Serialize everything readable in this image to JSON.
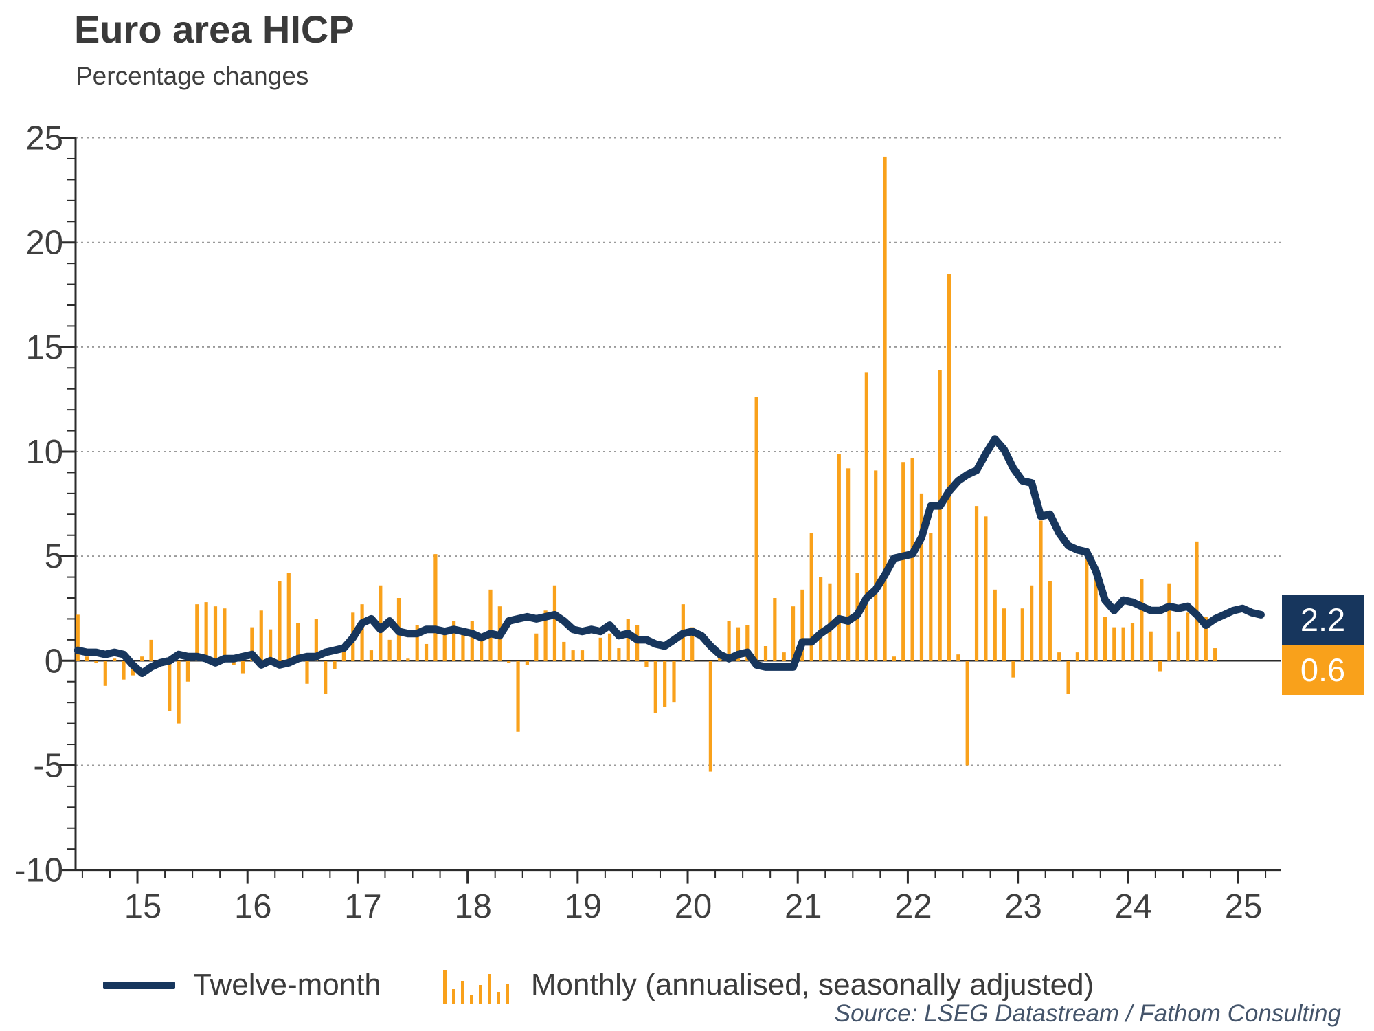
{
  "header": {
    "title": "Euro area HICP",
    "subtitle": "Percentage changes"
  },
  "legend": {
    "twelve_month_label": "Twelve-month",
    "monthly_label": "Monthly (annualised, seasonally adjusted)"
  },
  "source_text": "Source: LSEG Datastream / Fathom Consulting",
  "end_labels": {
    "line_value": "2.2",
    "bar_value": "0.6"
  },
  "colors": {
    "line": "#17365d",
    "bar": "#f9a11b",
    "grid": "#9a9a9a",
    "axis": "#2b2b2b",
    "tick_text": "#3f3f3f"
  },
  "chart_data": {
    "type": "bar+line",
    "title": "Euro area HICP",
    "ylabel": "Percentage changes",
    "ylim": [
      -10,
      25
    ],
    "ytick_step": 5,
    "ytick_labels": [
      "25",
      "20",
      "15",
      "10",
      "5",
      "0",
      "-5",
      "-10"
    ],
    "x_year_labels": [
      "15",
      "16",
      "17",
      "18",
      "19",
      "20",
      "21",
      "22",
      "23",
      "24",
      "25"
    ],
    "grid": "horizontal dotted gridlines at every 5 units except 0; solid zero line",
    "legend_position": "bottom",
    "start_month": "2014-06",
    "frequency": "monthly",
    "series": [
      {
        "name": "Twelve-month",
        "type": "line",
        "end_month": "2025-03",
        "values": [
          0.5,
          0.4,
          0.4,
          0.3,
          0.4,
          0.3,
          -0.2,
          -0.6,
          -0.3,
          -0.1,
          0.0,
          0.3,
          0.2,
          0.2,
          0.1,
          -0.1,
          0.1,
          0.1,
          0.2,
          0.3,
          -0.2,
          0.0,
          -0.2,
          -0.1,
          0.1,
          0.2,
          0.2,
          0.4,
          0.5,
          0.6,
          1.1,
          1.8,
          2.0,
          1.5,
          1.9,
          1.4,
          1.3,
          1.3,
          1.5,
          1.5,
          1.4,
          1.5,
          1.4,
          1.3,
          1.1,
          1.3,
          1.2,
          1.9,
          2.0,
          2.1,
          2.0,
          2.1,
          2.2,
          1.9,
          1.5,
          1.4,
          1.5,
          1.4,
          1.7,
          1.2,
          1.3,
          1.0,
          1.0,
          0.8,
          0.7,
          1.0,
          1.3,
          1.4,
          1.2,
          0.7,
          0.3,
          0.1,
          0.3,
          0.4,
          -0.2,
          -0.3,
          -0.3,
          -0.3,
          -0.3,
          0.9,
          0.9,
          1.3,
          1.6,
          2.0,
          1.9,
          2.2,
          3.0,
          3.4,
          4.1,
          4.9,
          5.0,
          5.1,
          5.9,
          7.4,
          7.4,
          8.1,
          8.6,
          8.9,
          9.1,
          9.9,
          10.6,
          10.1,
          9.2,
          8.6,
          8.5,
          6.9,
          7.0,
          6.1,
          5.5,
          5.3,
          5.2,
          4.3,
          2.9,
          2.4,
          2.9,
          2.8,
          2.6,
          2.4,
          2.4,
          2.6,
          2.5,
          2.6,
          2.2,
          1.7,
          2.0,
          2.2,
          2.4,
          2.5,
          2.3,
          2.2
        ]
      },
      {
        "name": "Monthly (annualised, seasonally adjusted)",
        "type": "bar",
        "end_month": "2024-10",
        "values": [
          2.2,
          0.2,
          -0.1,
          -1.2,
          0.1,
          -0.9,
          -0.7,
          0.2,
          1.0,
          -0.1,
          -2.4,
          -3.0,
          -1.0,
          2.7,
          2.8,
          2.6,
          2.5,
          -0.2,
          -0.6,
          1.6,
          2.4,
          1.5,
          3.8,
          4.2,
          1.8,
          -1.1,
          2.0,
          -1.6,
          -0.4,
          0.7,
          2.3,
          2.7,
          0.5,
          3.6,
          1.0,
          3.0,
          0.1,
          1.7,
          0.8,
          5.1,
          1.3,
          1.9,
          1.3,
          1.9,
          1.3,
          3.4,
          2.6,
          -0.1,
          -3.4,
          -0.2,
          1.3,
          2.4,
          3.6,
          0.9,
          0.5,
          0.5,
          0.0,
          1.1,
          1.3,
          0.6,
          2.0,
          1.7,
          -0.3,
          -2.5,
          -2.2,
          -2.0,
          2.7,
          1.6,
          0.0,
          -5.3,
          0.4,
          1.9,
          1.6,
          1.7,
          12.6,
          0.7,
          3.0,
          0.4,
          2.6,
          3.4,
          6.1,
          4.0,
          3.7,
          9.9,
          9.2,
          4.2,
          13.8,
          9.1,
          24.1,
          0.2,
          9.5,
          9.7,
          8.0,
          6.1,
          13.9,
          18.5,
          0.3,
          -5.0,
          7.4,
          6.9,
          3.4,
          2.5,
          -0.8,
          2.5,
          3.6,
          6.7,
          3.8,
          0.4,
          -1.6,
          0.4,
          5.2,
          4.4,
          2.1,
          1.6,
          1.6,
          1.8,
          3.9,
          1.4,
          -0.5,
          3.7,
          1.4,
          2.3,
          5.7,
          2.1,
          0.6
        ]
      }
    ],
    "end_values": {
      "twelve_month": 2.2,
      "monthly": 0.6
    }
  }
}
